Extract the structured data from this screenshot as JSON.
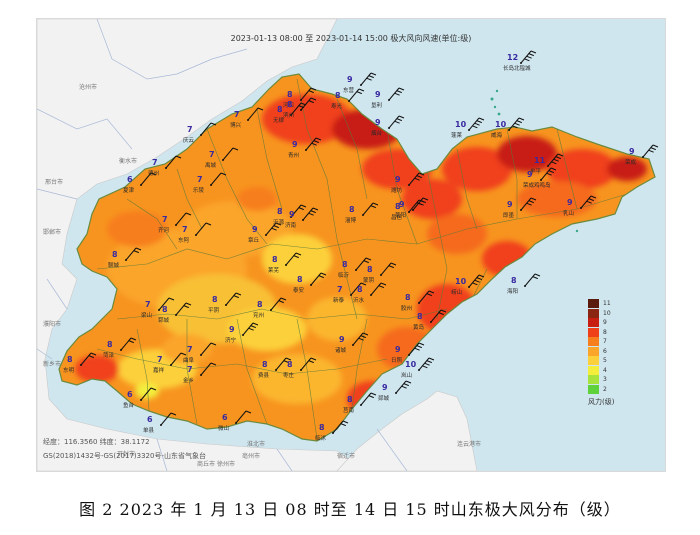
{
  "map": {
    "title": "2023-01-13 08:00 至 2023-01-14 15:00 极大风向风速(单位:级)",
    "coordinates": "经度：116.3560  纬度：38.1172",
    "credit": "GS(2018)1432号-GS(2017)3320号-山东省气象台"
  },
  "caption": "图 2 2023 年 1 月 13 日 08 时至 14 日 15 时山东极大风分布（级）",
  "legend": {
    "title": "风力(级)",
    "levels": [
      {
        "label": "11",
        "color": "#5a1a0c"
      },
      {
        "label": "10",
        "color": "#8c2412"
      },
      {
        "label": "9",
        "color": "#c81e12"
      },
      {
        "label": "8",
        "color": "#f0401a"
      },
      {
        "label": "7",
        "color": "#f77e1c"
      },
      {
        "label": "6",
        "color": "#fba52a"
      },
      {
        "label": "5",
        "color": "#fcd03a"
      },
      {
        "label": "4",
        "color": "#f3ee3c"
      },
      {
        "label": "3",
        "color": "#a8e33c"
      },
      {
        "label": "2",
        "color": "#5fd13a"
      }
    ]
  },
  "cities_outside": [
    {
      "name": "沧州市"
    },
    {
      "name": "衡水市"
    },
    {
      "name": "邢台市"
    },
    {
      "name": "邯郸市"
    },
    {
      "name": "濮阳市"
    },
    {
      "name": "新乡市"
    },
    {
      "name": "开封市"
    },
    {
      "name": "商丘市"
    },
    {
      "name": "亳州市"
    },
    {
      "name": "徐州市"
    },
    {
      "name": "宿迁市"
    },
    {
      "name": "连云港市"
    },
    {
      "name": "淮北市"
    }
  ],
  "stations": [
    {
      "value": "12",
      "name": "长岛北隍城"
    },
    {
      "value": "10",
      "name": "蓬莱"
    },
    {
      "value": "9",
      "name": "烟台"
    },
    {
      "value": "11",
      "name": "牟平"
    },
    {
      "value": "9",
      "name": "荣成"
    },
    {
      "value": "9",
      "name": "荣成鸡鸣岛"
    },
    {
      "value": "10",
      "name": "威海"
    },
    {
      "value": "9",
      "name": "乳山"
    },
    {
      "value": "9",
      "name": "莱阳"
    },
    {
      "value": "8",
      "name": "海阳"
    },
    {
      "value": "9",
      "name": "即墨"
    },
    {
      "value": "10",
      "name": "崂山"
    },
    {
      "value": "8",
      "name": "黄岛"
    },
    {
      "value": "8",
      "name": "胶州"
    },
    {
      "value": "9",
      "name": "诸城"
    },
    {
      "value": "9",
      "name": "日照"
    },
    {
      "value": "10",
      "name": "岚山"
    },
    {
      "value": "8",
      "name": "莒南"
    },
    {
      "value": "8",
      "name": "临沭"
    },
    {
      "value": "9",
      "name": "东营"
    },
    {
      "value": "8",
      "name": "河口"
    },
    {
      "value": "9",
      "name": "垦利"
    },
    {
      "value": "8",
      "name": "寿光"
    },
    {
      "value": "9",
      "name": "潍坊"
    },
    {
      "value": "8",
      "name": "昌邑"
    },
    {
      "value": "9",
      "name": "青州"
    },
    {
      "value": "8",
      "name": "沂源"
    },
    {
      "value": "8",
      "name": "淄博"
    },
    {
      "value": "7",
      "name": "博兴"
    },
    {
      "value": "8",
      "name": "滨州"
    },
    {
      "value": "8",
      "name": "无棣"
    },
    {
      "value": "7",
      "name": "庆云"
    },
    {
      "value": "7",
      "name": "乐陵"
    },
    {
      "value": "7",
      "name": "德州"
    },
    {
      "value": "6",
      "name": "夏津"
    },
    {
      "value": "7",
      "name": "禹城"
    },
    {
      "value": "7",
      "name": "齐河"
    },
    {
      "value": "9",
      "name": "章丘"
    },
    {
      "value": "9",
      "name": "济南"
    },
    {
      "value": "8",
      "name": "聊城"
    },
    {
      "value": "7",
      "name": "东阿"
    },
    {
      "value": "8",
      "name": "泰安"
    },
    {
      "value": "8",
      "name": "莱芜"
    },
    {
      "value": "7",
      "name": "新泰"
    },
    {
      "value": "8",
      "name": "平阴"
    },
    {
      "value": "7",
      "name": "梁山"
    },
    {
      "value": "8",
      "name": "郓城"
    },
    {
      "value": "8",
      "name": "菏泽"
    },
    {
      "value": "8",
      "name": "东明"
    },
    {
      "value": "9",
      "name": "济宁"
    },
    {
      "value": "8",
      "name": "兖州"
    },
    {
      "value": "7",
      "name": "曲阜"
    },
    {
      "value": "7",
      "name": "嘉祥"
    },
    {
      "value": "7",
      "name": "金乡"
    },
    {
      "value": "6",
      "name": "鱼台"
    },
    {
      "value": "6",
      "name": "单县"
    },
    {
      "value": "8",
      "name": "枣庄"
    },
    {
      "value": "6",
      "name": "微山"
    },
    {
      "value": "8",
      "name": "临沂"
    },
    {
      "value": "8",
      "name": "沂水"
    },
    {
      "value": "8",
      "name": "蒙阴"
    },
    {
      "value": "9",
      "name": "郯城"
    },
    {
      "value": "8",
      "name": "费县"
    }
  ]
}
